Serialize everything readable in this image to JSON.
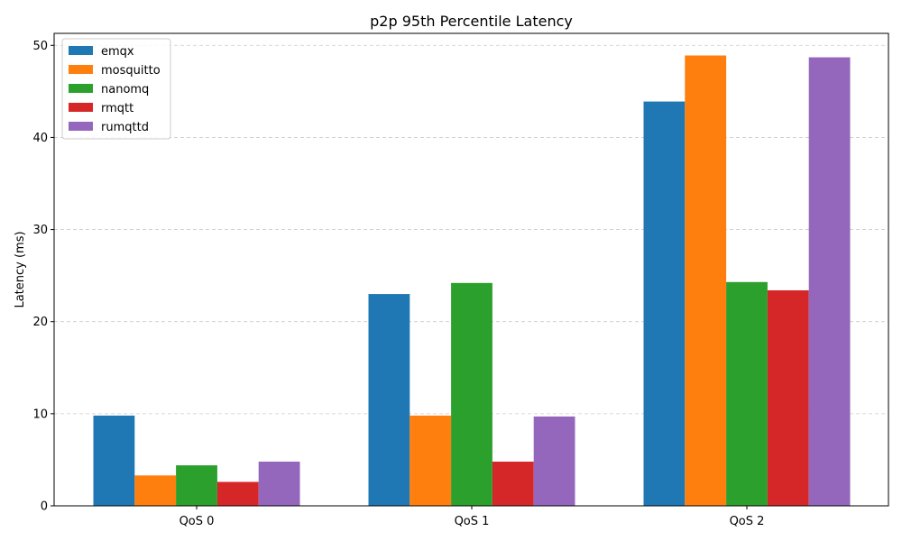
{
  "chart_data": {
    "type": "bar",
    "title": "p2p 95th Percentile Latency",
    "xlabel": "",
    "ylabel": "Latency (ms)",
    "categories": [
      "QoS 0",
      "QoS 1",
      "QoS 2"
    ],
    "ylim": [
      0,
      51.3
    ],
    "yticks": [
      0,
      10,
      20,
      30,
      40,
      50
    ],
    "grid": "y-dashed",
    "legend_position": "top-left",
    "series": [
      {
        "name": "emqx",
        "color": "#1f77b4",
        "values": [
          9.8,
          23.0,
          43.9
        ]
      },
      {
        "name": "mosquitto",
        "color": "#ff7f0e",
        "values": [
          3.3,
          9.8,
          48.9
        ]
      },
      {
        "name": "nanomq",
        "color": "#2ca02c",
        "values": [
          4.4,
          24.2,
          24.3
        ]
      },
      {
        "name": "rmqtt",
        "color": "#d62728",
        "values": [
          2.6,
          4.8,
          23.4
        ]
      },
      {
        "name": "rumqttd",
        "color": "#9467bd",
        "values": [
          4.8,
          9.7,
          48.7
        ]
      }
    ]
  }
}
